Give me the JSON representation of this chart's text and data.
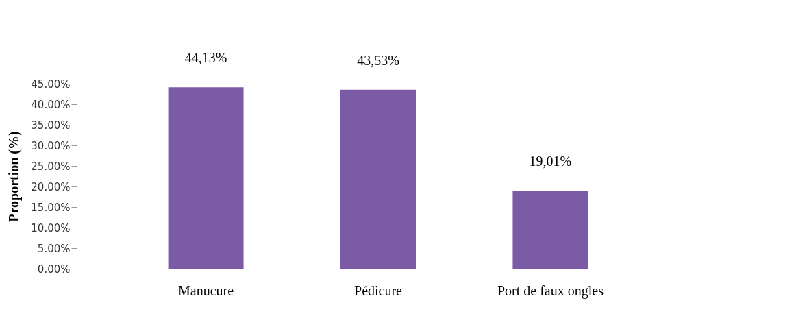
{
  "chart_data": {
    "type": "bar",
    "ylabel": "Proportion (%)",
    "categories": [
      "Manucure",
      "Pédicure",
      "Port de faux ongles"
    ],
    "values": [
      44.13,
      43.53,
      19.01
    ],
    "value_labels": [
      "44,13%",
      "43,53%",
      "19,01%"
    ],
    "color": "#7b5aa6",
    "ylim": [
      0,
      45
    ],
    "yticks": [
      {
        "value": 0,
        "label": "0.00%"
      },
      {
        "value": 5,
        "label": "5.00%"
      },
      {
        "value": 10,
        "label": "10.00%"
      },
      {
        "value": 15,
        "label": "15.00%"
      },
      {
        "value": 20,
        "label": "20.00%"
      },
      {
        "value": 25,
        "label": "25.00%"
      },
      {
        "value": 30,
        "label": "30.00%"
      },
      {
        "value": 35,
        "label": "35.00%"
      },
      {
        "value": 40,
        "label": "40.00%"
      },
      {
        "value": 45,
        "label": "45.00%"
      }
    ],
    "grid": false
  }
}
